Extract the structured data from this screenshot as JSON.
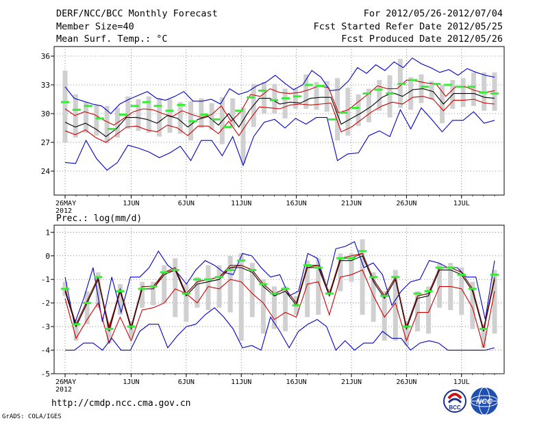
{
  "header": {
    "title": "DERF/NCC/BCC Monthly Forecast",
    "member_size": "Member Size=40",
    "variable_label": "Mean Surf. Temp.: °C",
    "forecast_period": "For 2012/05/26-2012/07/04",
    "start_refer": "Fcst Started Refer Date 2012/05/25",
    "produced": "Fcst Produced Date 2012/05/26"
  },
  "footer": {
    "url": "http://cmdp.ncc.cma.gov.cn",
    "credit": "GrADS: COLA/IGES",
    "logo_bcc_text": "BCC",
    "logo_ncc_text": "NCC"
  },
  "colors": {
    "max_min": "#0000cc",
    "spread": "#cc0000",
    "mean": "#000000",
    "median": "#33ee33",
    "box": "#d0d0d0"
  },
  "chart_data": [
    {
      "type": "line",
      "title": "Mean Surf. Temp.: °C",
      "xlabel": "",
      "ylabel": "",
      "x_range": [
        1,
        40
      ],
      "ylim": [
        21.5,
        37
      ],
      "yticks": [
        24,
        27,
        30,
        33,
        36
      ],
      "grid": true,
      "xtick_labels": [
        {
          "day": 1,
          "label": "26MAY",
          "sub": "2012"
        },
        {
          "day": 7,
          "label": "1JUN"
        },
        {
          "day": 12,
          "label": "6JUN"
        },
        {
          "day": 17,
          "label": "11JUN"
        },
        {
          "day": 22,
          "label": "16JUN"
        },
        {
          "day": 27,
          "label": "21JUN"
        },
        {
          "day": 32,
          "label": "26JUN"
        },
        {
          "day": 37,
          "label": "1JUL"
        }
      ],
      "series": [
        {
          "name": "max",
          "role": "max_min",
          "values": [
            32.8,
            31.6,
            31.3,
            31,
            30.8,
            30,
            31,
            31.5,
            31.9,
            32.3,
            31.6,
            31.4,
            31.8,
            32.3,
            31.3,
            31.3,
            31.5,
            31,
            32.6,
            32,
            32.3,
            32.9,
            33.3,
            34,
            33.2,
            32.5,
            33,
            34.5,
            33.8,
            32.4,
            32.5,
            33.4,
            34.8,
            34.2,
            35.1,
            34.5,
            35.4,
            34.8,
            35.8,
            35.2,
            34.8,
            34.3,
            34.6,
            34,
            34.7,
            34.3,
            34,
            33.8
          ]
        },
        {
          "name": "upper",
          "role": "spread",
          "values": [
            30.5,
            29.8,
            30.2,
            29.9,
            29.3,
            28.8,
            29.5,
            30.2,
            30.5,
            30.4,
            30,
            29.7,
            30.3,
            29.9,
            29.6,
            29.9,
            30.8,
            29.2,
            30.2,
            32,
            31.8,
            32.6,
            32.2,
            32.1,
            32.2,
            32.5,
            32.9,
            32.7,
            30.1,
            30.4,
            31.2,
            32,
            32.9,
            32.6,
            32.6,
            33.5,
            33.4,
            33.2,
            33.1,
            31.8,
            32.8,
            32.8,
            32.4,
            32.2,
            32.4
          ]
        },
        {
          "name": "mean",
          "role": "mean",
          "values": [
            29.1,
            28.6,
            29,
            28.4,
            27.6,
            28.4,
            29.6,
            29.6,
            29.4,
            29,
            29.8,
            29.5,
            28.6,
            29.4,
            29.7,
            28.8,
            30,
            28.6,
            30.3,
            31.6,
            31.6,
            31,
            31.2,
            31.1,
            31.6,
            31.7,
            31.7,
            28.9,
            29.5,
            30.1,
            30.8,
            31.7,
            32.2,
            31.8,
            32.5,
            32.6,
            32.3,
            31,
            32.1,
            32.1,
            32.1,
            31.7,
            31.6
          ]
        },
        {
          "name": "lower",
          "role": "spread",
          "values": [
            28.2,
            27.8,
            28.3,
            27.5,
            27,
            27.8,
            28.6,
            28.7,
            28.3,
            28.1,
            28.8,
            28.5,
            27.7,
            28.7,
            28.7,
            27.9,
            29.2,
            27.7,
            29.3,
            30.7,
            30.6,
            30.5,
            30.9,
            31,
            30.9,
            31,
            31.1,
            28.1,
            28.6,
            29.4,
            30.2,
            30.8,
            31.2,
            31,
            31.7,
            31.8,
            31.5,
            30.3,
            31.4,
            31.4,
            31.5,
            31.1,
            31
          ]
        },
        {
          "name": "min",
          "role": "max_min",
          "values": [
            24.9,
            24.8,
            27.2,
            25.3,
            24.1,
            24.9,
            26.7,
            26.4,
            26,
            25.4,
            25.9,
            26.6,
            25.1,
            27.2,
            27.2,
            25.6,
            27.6,
            24.6,
            27.6,
            29.1,
            29.4,
            28.5,
            29.5,
            28.9,
            29.6,
            29.6,
            25.1,
            25.8,
            25.9,
            27.7,
            28.2,
            27.6,
            30.4,
            28.4,
            30.6,
            29.4,
            28.1,
            29.3,
            29.3,
            30.2,
            29,
            29.3
          ]
        }
      ],
      "box_low": [
        27,
        27.5,
        28,
        27.7,
        26.9,
        27.5,
        28.4,
        28.2,
        28,
        27.6,
        28,
        27.9,
        27.2,
        28.5,
        28.3,
        26.8,
        28.6,
        24.8,
        28.6,
        30,
        30,
        29.5,
        30.5,
        30.5,
        30.4,
        30.2,
        27.2,
        27.7,
        28.7,
        29.1,
        30.3,
        29.6,
        30.6,
        30.4,
        31.1,
        31.5,
        29,
        30.5,
        30.7,
        30.8,
        30.3,
        30.3
      ],
      "box_high": [
        34.5,
        32,
        31.2,
        30.9,
        30.8,
        30.6,
        31.8,
        31.5,
        31.8,
        31.6,
        31.5,
        31.2,
        31.3,
        31.6,
        31.1,
        31.7,
        31.6,
        30.6,
        33.1,
        33.3,
        33.1,
        32.6,
        32.6,
        34.1,
        33.3,
        33.4,
        33.7,
        32.7,
        32,
        32.6,
        33.5,
        34,
        35.7,
        33.8,
        34.1,
        33.4,
        33,
        33.5,
        33.7,
        34.3,
        34.3,
        34.3,
        34.3
      ],
      "median_marks": [
        31.2,
        30.4,
        30.8,
        29.5,
        28.4,
        29.9,
        30.8,
        31.2,
        30.8,
        30.3,
        30.9,
        29.2,
        29.9,
        29.4,
        28.6,
        30.3,
        31.7,
        32.4,
        31.4,
        31.6,
        31.8,
        33,
        32.9,
        29.4,
        30.1,
        30.6,
        32.1,
        32.5,
        32.1,
        33.1,
        33.5,
        32.8,
        33.1,
        33,
        32.8,
        32.8,
        32.2,
        32.1
      ]
    },
    {
      "type": "line",
      "title": "Prec.: log(mm/d)",
      "xlabel": "",
      "ylabel": "",
      "x_range": [
        1,
        40
      ],
      "ylim": [
        -5,
        1.3
      ],
      "yticks": [
        1,
        0,
        -1,
        -2,
        -3,
        -4,
        -5
      ],
      "grid": true,
      "xtick_labels": [
        {
          "day": 1,
          "label": "26MAY",
          "sub": "2012"
        },
        {
          "day": 7,
          "label": "1JUN"
        },
        {
          "day": 12,
          "label": "6JUN"
        },
        {
          "day": 17,
          "label": "11JUN"
        },
        {
          "day": 22,
          "label": "16JUN"
        },
        {
          "day": 27,
          "label": "21JUN"
        },
        {
          "day": 32,
          "label": "26JUN"
        },
        {
          "day": 37,
          "label": "1JUL"
        }
      ],
      "series": [
        {
          "name": "max",
          "role": "max_min",
          "values": [
            -0.9,
            -2.9,
            -1.8,
            -0.5,
            -2.8,
            -0.9,
            -2.4,
            -0.9,
            -0.9,
            -0.5,
            0.2,
            -0.4,
            -0.7,
            -1.2,
            -0.6,
            -0.2,
            -0.4,
            -0.7,
            -0.8,
            0.1,
            0,
            -0.5,
            -0.9,
            -0.8,
            -1.7,
            -1.5,
            0.1,
            -0.1,
            -1.3,
            0.3,
            0.4,
            0.6,
            -0.5,
            -0.3,
            -0.8,
            -2.1,
            -1.5,
            -1.1,
            -1,
            -0.2,
            -0.3,
            -0.5,
            -0.5,
            -0.9,
            -0.9,
            -2.7,
            -0.2
          ]
        },
        {
          "name": "upper",
          "role": "spread",
          "values": [
            -1.5,
            -3,
            -2,
            -1,
            -3,
            -1.5,
            -3,
            -1.4,
            -1.4,
            -0.7,
            -0.6,
            -1.6,
            -1.1,
            -1,
            -0.9,
            -0.5,
            -0.4,
            -0.6,
            -1.2,
            -1.6,
            -1.4,
            -2,
            -0.5,
            -0.4,
            -1.6,
            -0.1,
            0,
            0.1,
            -1,
            -1.7,
            -0.9,
            -3,
            -1.7,
            -1.6,
            -0.5,
            -0.5,
            -0.7,
            -1.4,
            -3.1,
            -1
          ]
        },
        {
          "name": "mean",
          "role": "mean",
          "values": [
            -1.5,
            -3,
            -2,
            -1,
            -3.2,
            -1.5,
            -3.1,
            -1.4,
            -1.4,
            -0.8,
            -0.6,
            -1.7,
            -1.2,
            -1.1,
            -1,
            -0.5,
            -0.5,
            -0.7,
            -1.3,
            -1.7,
            -1.5,
            -2.1,
            -0.5,
            -0.5,
            -1.7,
            -0.2,
            -0.2,
            0,
            -1.1,
            -1.8,
            -1,
            -3.1,
            -1.8,
            -1.7,
            -0.6,
            -0.6,
            -0.8,
            -1.5,
            -3.2,
            -1
          ]
        },
        {
          "name": "lower",
          "role": "spread",
          "values": [
            -1.8,
            -3.5,
            -2.7,
            -2,
            -3.7,
            -2.6,
            -3.6,
            -2.3,
            -2.2,
            -2,
            -1.4,
            -1.6,
            -2,
            -1.3,
            -1.4,
            -1,
            -1.1,
            -1.6,
            -2,
            -2.7,
            -2.4,
            -2.6,
            -1.2,
            -1.1,
            -2.5,
            -0.9,
            -0.8,
            -0.6,
            -1.7,
            -2.6,
            -2,
            -3.6,
            -2.4,
            -2.4,
            -1.3,
            -1.3,
            -1.4,
            -2.2,
            -3.9,
            -1.5
          ]
        },
        {
          "name": "min",
          "role": "max_min",
          "values": [
            -4,
            -4,
            -3.7,
            -3.7,
            -4,
            -3.5,
            -4,
            -4,
            -3.2,
            -2.9,
            -2.9,
            -3.9,
            -3.4,
            -3,
            -2.9,
            -2.5,
            -2.2,
            -2.6,
            -3.1,
            -3.9,
            -3.8,
            -4,
            -2.6,
            -3.2,
            -3.9,
            -3.2,
            -2.9,
            -2.7,
            -3,
            -4,
            -3.6,
            -4,
            -3.7,
            -3.7,
            -3.2,
            -3.5,
            -3.5,
            -4,
            -3.7,
            -3.6,
            -3.7,
            -4,
            -4,
            -4,
            -4,
            -4,
            -3.9
          ]
        },
        {
          "name": "upper_dark",
          "role": "spread",
          "values": [
            -1.4,
            -2.9,
            -1.9,
            -0.9,
            -3.1,
            -1.4,
            -3,
            -1.3,
            -1.3,
            -0.7,
            -0.5,
            -1.6,
            -1.1,
            -1,
            -0.9,
            -0.4,
            -0.4,
            -0.6,
            -1.2,
            -1.6,
            -1.4,
            -2,
            -0.4,
            -0.4,
            -1.6,
            -0.1,
            -0.1,
            0.1,
            -1,
            -1.7,
            -0.9,
            -3,
            -1.7,
            -1.6,
            -0.5,
            -0.5,
            -0.7,
            -1.4,
            -3.1,
            -0.9
          ]
        }
      ],
      "box_low": [
        -1.7,
        -3.6,
        -2.9,
        -2.2,
        -3.7,
        -2.5,
        -3.5,
        -2.2,
        -2.1,
        -2,
        -2.6,
        -2.8,
        -2.2,
        -2.3,
        -2.2,
        -2.4,
        -3.6,
        -2.6,
        -3.3,
        -3.1,
        -3.2,
        -2.5,
        -2.6,
        -2.5,
        -1.5,
        -1.5,
        -1.1,
        -2.5,
        -2.8,
        -3.6,
        -3.6,
        -3.8,
        -3.2,
        -3.3,
        -2.2,
        -2.3,
        -2.5,
        -3.1,
        -3.9,
        -3.3
      ],
      "box_high": [
        -1.1,
        -2.7,
        -1.5,
        -0.7,
        -2.8,
        -1.2,
        -2.8,
        -1.1,
        -1.1,
        -0.4,
        -0.1,
        -1.2,
        -0.9,
        -0.4,
        -0.4,
        0,
        0.1,
        -0.3,
        -1,
        -1.3,
        -1.3,
        -1.7,
        -0.2,
        -0.1,
        -1.4,
        0.1,
        0.1,
        0.7,
        -0.7,
        -1.5,
        -0.6,
        -2.8,
        -1.5,
        -1.3,
        -0.3,
        -0.3,
        -0.5,
        -1.1,
        -2.9,
        -0.6
      ],
      "median_marks": [
        -1.4,
        -2.9,
        -2,
        -0.9,
        -3.1,
        -1.5,
        -3,
        -1.4,
        -1.3,
        -0.7,
        -0.6,
        -1.6,
        -1,
        -1,
        -0.9,
        -0.6,
        -0.2,
        -0.6,
        -1.2,
        -1.6,
        -1.4,
        -2.1,
        -0.4,
        -0.5,
        -1.6,
        -0.1,
        -0.1,
        0.2,
        -0.9,
        -1.7,
        -0.9,
        -3,
        -1.6,
        -1.5,
        -0.5,
        -0.5,
        -0.8,
        -1.4,
        -3.1,
        -0.8
      ]
    }
  ]
}
